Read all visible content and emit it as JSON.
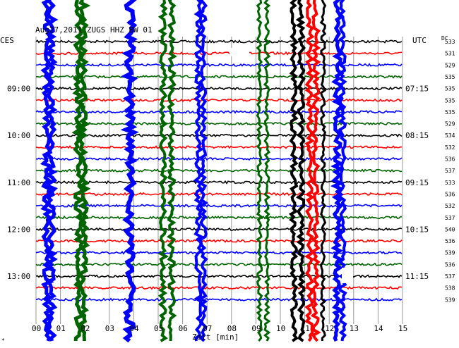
{
  "chart_data": {
    "type": "line",
    "title": "Aug27,2011   ZUGS HHZ BW 01",
    "xlabel": "Zeit [min]",
    "left_axis_label": "CES",
    "right_axis_label": "UTC",
    "dc_label": "DC",
    "xlim": [
      0,
      15
    ],
    "x_ticks": [
      "00",
      "01",
      "02",
      "03",
      "04",
      "05",
      "06",
      "07",
      "08",
      "09",
      "10",
      "11",
      "12",
      "13",
      "14",
      "15"
    ],
    "left_time_labels": [
      {
        "row": 4,
        "label": "09:00"
      },
      {
        "row": 8,
        "label": "10:00"
      },
      {
        "row": 12,
        "label": "11:00"
      },
      {
        "row": 16,
        "label": "12:00"
      },
      {
        "row": 20,
        "label": "13:00"
      }
    ],
    "right_time_labels": [
      {
        "row": 4,
        "label": "07:15"
      },
      {
        "row": 8,
        "label": "08:15"
      },
      {
        "row": 12,
        "label": "09:15"
      },
      {
        "row": 16,
        "label": "10:15"
      },
      {
        "row": 20,
        "label": "11:15"
      }
    ],
    "dc_values": [
      533,
      531,
      529,
      535,
      535,
      535,
      535,
      529,
      534,
      532,
      536,
      537,
      533,
      536,
      532,
      537,
      540,
      536,
      539,
      536,
      537,
      538,
      539
    ],
    "trace_colors": [
      "#000000",
      "#ff0000",
      "#0000ff",
      "#006400"
    ],
    "num_traces": 23,
    "tall_events": [
      {
        "x": 0.45,
        "color": "#0000ff",
        "width": 5
      },
      {
        "x": 0.62,
        "color": "#0000ff",
        "width": 5
      },
      {
        "x": 1.75,
        "color": "#006400",
        "width": 5
      },
      {
        "x": 1.95,
        "color": "#006400",
        "width": 5
      },
      {
        "x": 3.85,
        "color": "#0000ff",
        "width": 6
      },
      {
        "x": 5.2,
        "color": "#006400",
        "width": 4
      },
      {
        "x": 5.55,
        "color": "#006400",
        "width": 4
      },
      {
        "x": 6.65,
        "color": "#0000ff",
        "width": 4
      },
      {
        "x": 6.85,
        "color": "#0000ff",
        "width": 4
      },
      {
        "x": 9.15,
        "color": "#006400",
        "width": 3
      },
      {
        "x": 9.45,
        "color": "#006400",
        "width": 3
      },
      {
        "x": 10.55,
        "color": "#000000",
        "width": 4
      },
      {
        "x": 10.85,
        "color": "#000000",
        "width": 4
      },
      {
        "x": 11.2,
        "color": "#ff0000",
        "width": 4
      },
      {
        "x": 11.45,
        "color": "#ff0000",
        "width": 4
      },
      {
        "x": 11.75,
        "color": "#000000",
        "width": 3
      },
      {
        "x": 12.35,
        "color": "#0000ff",
        "width": 5
      },
      {
        "x": 12.55,
        "color": "#0000ff",
        "width": 4
      }
    ]
  }
}
